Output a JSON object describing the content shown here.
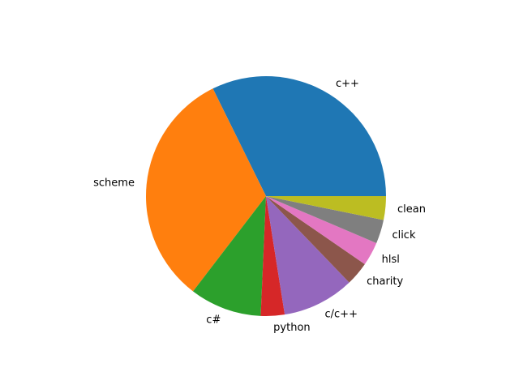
{
  "chart_data": {
    "type": "pie",
    "title": "",
    "slices": [
      {
        "label": "c++",
        "value": 33.3,
        "color": "#1f77b4"
      },
      {
        "label": "scheme",
        "value": 33.3,
        "color": "#ff7f0e"
      },
      {
        "label": "c#",
        "value": 10.0,
        "color": "#2ca02c"
      },
      {
        "label": "python",
        "value": 3.3,
        "color": "#d62728"
      },
      {
        "label": "c/c++",
        "value": 10.0,
        "color": "#9467bd"
      },
      {
        "label": "charity",
        "value": 3.3,
        "color": "#8c564b"
      },
      {
        "label": "hlsl",
        "value": 3.3,
        "color": "#e377c2"
      },
      {
        "label": "click",
        "value": 3.3,
        "color": "#7f7f7f"
      },
      {
        "label": "clean",
        "value": 3.3,
        "color": "#bcbd22"
      }
    ],
    "start_angle": "0 degrees (3 o'clock)",
    "direction": "counterclockwise",
    "legend": "none",
    "grid": false
  }
}
